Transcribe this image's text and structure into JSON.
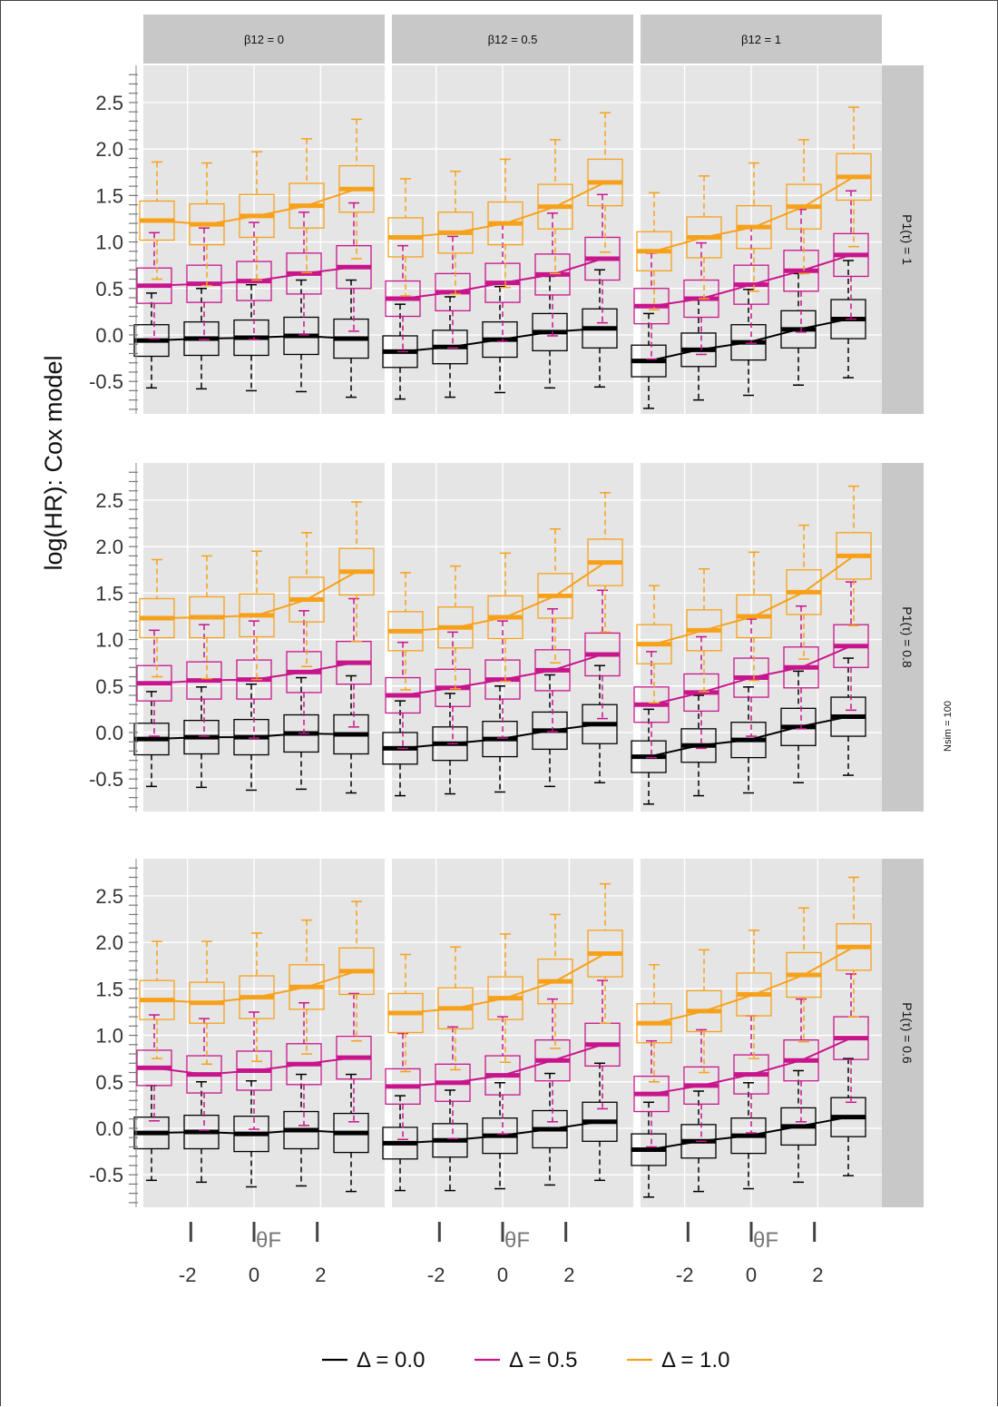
{
  "chart_data": {
    "type": "box",
    "ylabel": "log(HR): Cox model",
    "xlabel": "θF",
    "x_ticks": [
      -2,
      0,
      2
    ],
    "y_ticks": [
      -0.5,
      0.0,
      0.5,
      1.0,
      1.5,
      2.0,
      2.5
    ],
    "y_tick_labels": [
      "-0.5",
      "0.0",
      "0.5",
      "1.0",
      "1.5",
      "2.0",
      "2.5"
    ],
    "ylim": [
      -0.85,
      2.9
    ],
    "theta_positions": [
      -3,
      -1.5,
      0,
      1.5,
      3
    ],
    "column_facets": [
      "β12 = 0",
      "β12 = 0.5",
      "β12 = 1"
    ],
    "row_facets": [
      "P1(τ) = 1",
      "P1(τ) = 0.8",
      "P1(τ) = 0.6"
    ],
    "caption": "Nsim = 100",
    "legend": {
      "position": "bottom",
      "entries": [
        {
          "label": "Δ = 0.0",
          "color": "#000000"
        },
        {
          "label": "Δ = 0.5",
          "color": "#c8158c"
        },
        {
          "label": "Δ = 1.0",
          "color": "#f7a11a"
        }
      ]
    },
    "panels": [
      {
        "row": 0,
        "col": 0,
        "series": [
          {
            "name": "Δ = 0.0",
            "medians": [
              -0.06,
              -0.04,
              -0.03,
              -0.01,
              -0.04
            ]
          },
          {
            "name": "Δ = 0.5",
            "medians": [
              0.53,
              0.55,
              0.58,
              0.66,
              0.73
            ]
          },
          {
            "name": "Δ = 1.0",
            "medians": [
              1.23,
              1.19,
              1.28,
              1.39,
              1.57
            ]
          }
        ]
      },
      {
        "row": 0,
        "col": 1,
        "series": [
          {
            "name": "Δ = 0.0",
            "medians": [
              -0.18,
              -0.13,
              -0.05,
              0.03,
              0.07
            ]
          },
          {
            "name": "Δ = 0.5",
            "medians": [
              0.39,
              0.46,
              0.56,
              0.65,
              0.82
            ]
          },
          {
            "name": "Δ = 1.0",
            "medians": [
              1.05,
              1.1,
              1.2,
              1.38,
              1.64
            ]
          }
        ]
      },
      {
        "row": 0,
        "col": 2,
        "series": [
          {
            "name": "Δ = 0.0",
            "medians": [
              -0.28,
              -0.16,
              -0.08,
              0.06,
              0.17
            ]
          },
          {
            "name": "Δ = 0.5",
            "medians": [
              0.31,
              0.39,
              0.54,
              0.69,
              0.86
            ]
          },
          {
            "name": "Δ = 1.0",
            "medians": [
              0.9,
              1.05,
              1.16,
              1.38,
              1.7
            ]
          }
        ]
      },
      {
        "row": 1,
        "col": 0,
        "series": [
          {
            "name": "Δ = 0.0",
            "medians": [
              -0.07,
              -0.05,
              -0.05,
              -0.01,
              -0.02
            ]
          },
          {
            "name": "Δ = 0.5",
            "medians": [
              0.53,
              0.56,
              0.57,
              0.65,
              0.75
            ]
          },
          {
            "name": "Δ = 1.0",
            "medians": [
              1.23,
              1.24,
              1.26,
              1.43,
              1.73
            ]
          }
        ]
      },
      {
        "row": 1,
        "col": 1,
        "series": [
          {
            "name": "Δ = 0.0",
            "medians": [
              -0.17,
              -0.12,
              -0.07,
              0.02,
              0.09
            ]
          },
          {
            "name": "Δ = 0.5",
            "medians": [
              0.4,
              0.48,
              0.57,
              0.67,
              0.84
            ]
          },
          {
            "name": "Δ = 1.0",
            "medians": [
              1.09,
              1.13,
              1.24,
              1.47,
              1.83
            ]
          }
        ]
      },
      {
        "row": 1,
        "col": 2,
        "series": [
          {
            "name": "Δ = 0.0",
            "medians": [
              -0.26,
              -0.14,
              -0.08,
              0.06,
              0.17
            ]
          },
          {
            "name": "Δ = 0.5",
            "medians": [
              0.3,
              0.43,
              0.59,
              0.7,
              0.93
            ]
          },
          {
            "name": "Δ = 1.0",
            "medians": [
              0.95,
              1.1,
              1.25,
              1.51,
              1.9
            ]
          }
        ]
      },
      {
        "row": 2,
        "col": 0,
        "series": [
          {
            "name": "Δ = 0.0",
            "medians": [
              -0.05,
              -0.04,
              -0.06,
              -0.02,
              -0.05
            ]
          },
          {
            "name": "Δ = 0.5",
            "medians": [
              0.65,
              0.58,
              0.62,
              0.69,
              0.76
            ]
          },
          {
            "name": "Δ = 1.0",
            "medians": [
              1.38,
              1.35,
              1.41,
              1.52,
              1.69
            ]
          }
        ]
      },
      {
        "row": 2,
        "col": 1,
        "series": [
          {
            "name": "Δ = 0.0",
            "medians": [
              -0.16,
              -0.13,
              -0.08,
              -0.01,
              0.07
            ]
          },
          {
            "name": "Δ = 0.5",
            "medians": [
              0.45,
              0.49,
              0.57,
              0.73,
              0.9
            ]
          },
          {
            "name": "Δ = 1.0",
            "medians": [
              1.24,
              1.29,
              1.4,
              1.58,
              1.88
            ]
          }
        ]
      },
      {
        "row": 2,
        "col": 2,
        "series": [
          {
            "name": "Δ = 0.0",
            "medians": [
              -0.23,
              -0.14,
              -0.08,
              0.02,
              0.12
            ]
          },
          {
            "name": "Δ = 0.5",
            "medians": [
              0.37,
              0.46,
              0.58,
              0.73,
              0.97
            ]
          },
          {
            "name": "Δ = 1.0",
            "medians": [
              1.13,
              1.26,
              1.44,
              1.65,
              1.95
            ]
          }
        ]
      }
    ]
  }
}
